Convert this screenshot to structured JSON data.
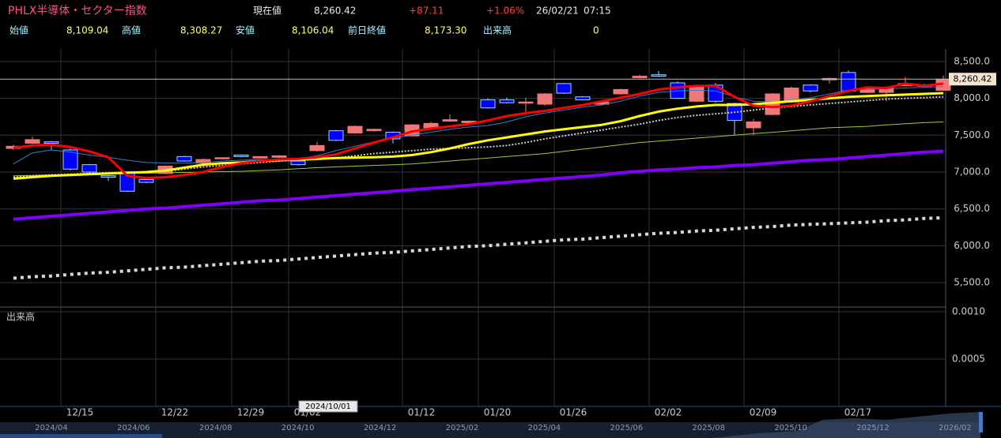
{
  "header": {
    "row1": [
      "PHLX半導体・セクター指数",
      "現在値",
      "8,260.42",
      "+87.11",
      "+1.06%",
      "26/02/21",
      "07:15"
    ],
    "row2": [
      "始値",
      "8,109.04",
      "高値",
      "8,308.27",
      "安値",
      "8,106.04",
      "前日終値",
      "8,173.30",
      "出来高",
      "0"
    ]
  },
  "chart_data": {
    "type": "candlestick",
    "categories": [
      null,
      null,
      null,
      "12/15",
      null,
      null,
      null,
      null,
      "12/22",
      null,
      null,
      null,
      "12/29",
      null,
      null,
      "01/02",
      null,
      null,
      null,
      null,
      null,
      "01/12",
      null,
      null,
      null,
      "01/20",
      null,
      null,
      null,
      "01/26",
      null,
      null,
      null,
      null,
      "02/02",
      null,
      null,
      null,
      null,
      "02/09",
      null,
      null,
      null,
      null,
      "02/17",
      null,
      null,
      null,
      null,
      null
    ],
    "open": [
      7320,
      7390,
      7410,
      7300,
      7100,
      6950,
      7000,
      6900,
      6980,
      7210,
      7120,
      7180,
      7230,
      7190,
      7200,
      7150,
      7290,
      7560,
      7530,
      7560,
      7540,
      7490,
      7600,
      7690,
      7670,
      7980,
      7980,
      7940,
      7920,
      8200,
      8020,
      7920,
      8060,
      8280,
      8320,
      8210,
      7960,
      8180,
      7930,
      7600,
      7780,
      7950,
      8180,
      8250,
      8350,
      8080,
      8080,
      8170,
      8170,
      8109.04
    ],
    "high": [
      7370,
      7480,
      7420,
      7320,
      7110,
      6960,
      7010,
      6920,
      7090,
      7220,
      7180,
      7200,
      7240,
      7215,
      7230,
      7170,
      7410,
      7570,
      7630,
      7590,
      7550,
      7650,
      7680,
      7780,
      7700,
      8000,
      8010,
      8010,
      8070,
      8210,
      8030,
      7960,
      8130,
      8320,
      8370,
      8230,
      8170,
      8210,
      7940,
      7720,
      8070,
      8160,
      8190,
      8280,
      8380,
      8150,
      8160,
      8290,
      8200,
      8308.27
    ],
    "low": [
      7300,
      7380,
      7300,
      7020,
      6980,
      6880,
      6730,
      6850,
      6970,
      7140,
      7110,
      7170,
      7200,
      7185,
      7190,
      7090,
      7280,
      7420,
      7520,
      7550,
      7390,
      7480,
      7590,
      7680,
      7650,
      7860,
      7930,
      7800,
      7900,
      8060,
      7970,
      7910,
      8050,
      8270,
      8290,
      7990,
      7950,
      7940,
      7500,
      7500,
      7770,
      7940,
      8080,
      8200,
      8080,
      8070,
      7960,
      8160,
      8150,
      8106.04
    ],
    "close": [
      7350,
      7440,
      7390,
      7040,
      7000,
      6930,
      6740,
      6860,
      7080,
      7150,
      7170,
      7195,
      7210,
      7210,
      7220,
      7100,
      7360,
      7430,
      7620,
      7580,
      7450,
      7640,
      7660,
      7710,
      7690,
      7870,
      7940,
      7950,
      8060,
      8070,
      7980,
      7950,
      8120,
      8300,
      8300,
      8000,
      8150,
      7960,
      7700,
      7680,
      8060,
      8140,
      8100,
      8270,
      8100,
      8140,
      8140,
      8200,
      8180,
      8260.42
    ],
    "up_color": "#f07878",
    "down_color": "#0000ff",
    "series": [
      {
        "color": "#d8d8d8",
        "width": 4,
        "dash": "4 5",
        "values": [
          5560,
          5580,
          5590,
          5610,
          5630,
          5640,
          5660,
          5680,
          5700,
          5710,
          5730,
          5750,
          5770,
          5790,
          5800,
          5820,
          5840,
          5860,
          5880,
          5900,
          5910,
          5930,
          5950,
          5970,
          5990,
          6000,
          6020,
          6040,
          6060,
          6080,
          6090,
          6110,
          6130,
          6150,
          6170,
          6180,
          6200,
          6210,
          6230,
          6250,
          6260,
          6280,
          6290,
          6300,
          6310,
          6320,
          6340,
          6350,
          6370,
          6380
        ]
      },
      {
        "color": "#8000ff",
        "width": 4,
        "values": [
          6360,
          6380,
          6400,
          6420,
          6440,
          6460,
          6480,
          6500,
          6510,
          6530,
          6550,
          6570,
          6590,
          6610,
          6620,
          6640,
          6660,
          6680,
          6700,
          6720,
          6740,
          6760,
          6780,
          6800,
          6820,
          6840,
          6860,
          6880,
          6900,
          6920,
          6940,
          6960,
          6990,
          7010,
          7030,
          7040,
          7060,
          7070,
          7090,
          7100,
          7120,
          7140,
          7160,
          7170,
          7190,
          7210,
          7230,
          7250,
          7270,
          7280
        ]
      },
      {
        "color": "#9acd32",
        "width": 1,
        "values": [
          6950,
          6955,
          6960,
          6965,
          6970,
          6975,
          6980,
          6985,
          6990,
          6995,
          7000,
          7005,
          7010,
          7020,
          7030,
          7045,
          7060,
          7070,
          7080,
          7090,
          7100,
          7110,
          7130,
          7150,
          7170,
          7190,
          7210,
          7230,
          7250,
          7280,
          7310,
          7340,
          7370,
          7400,
          7420,
          7440,
          7460,
          7480,
          7500,
          7520,
          7540,
          7560,
          7580,
          7600,
          7610,
          7620,
          7640,
          7655,
          7670,
          7680
        ]
      },
      {
        "color": "#3a7bd5",
        "width": 1,
        "values": [
          7110,
          7260,
          7300,
          7270,
          7230,
          7200,
          7160,
          7130,
          7120,
          7120,
          7130,
          7150,
          7160,
          7170,
          7170,
          7180,
          7220,
          7290,
          7350,
          7410,
          7460,
          7500,
          7540,
          7580,
          7610,
          7630,
          7680,
          7750,
          7800,
          7840,
          7880,
          7910,
          7960,
          8030,
          8080,
          8100,
          8110,
          8100,
          8020,
          7960,
          7950,
          7980,
          8010,
          8060,
          8110,
          8120,
          8130,
          8140,
          8150,
          8160
        ]
      },
      {
        "color": "#cccccc",
        "width": 2,
        "dash": "2 2",
        "values": [
          6930,
          6950,
          6960,
          6970,
          6980,
          6990,
          7000,
          7000,
          7010,
          7040,
          7070,
          7090,
          7110,
          7130,
          7150,
          7160,
          7170,
          7190,
          7220,
          7250,
          7270,
          7290,
          7310,
          7320,
          7330,
          7340,
          7360,
          7400,
          7450,
          7490,
          7530,
          7570,
          7610,
          7650,
          7700,
          7740,
          7770,
          7790,
          7810,
          7840,
          7870,
          7890,
          7910,
          7930,
          7950,
          7970,
          7990,
          8000,
          8010,
          8020
        ]
      },
      {
        "color": "#ffff00",
        "width": 3,
        "values": [
          6910,
          6930,
          6950,
          6960,
          6970,
          6980,
          6990,
          7000,
          7020,
          7060,
          7100,
          7120,
          7130,
          7150,
          7160,
          7170,
          7180,
          7190,
          7195,
          7200,
          7210,
          7230,
          7270,
          7320,
          7380,
          7430,
          7470,
          7510,
          7550,
          7580,
          7610,
          7640,
          7690,
          7760,
          7820,
          7860,
          7890,
          7910,
          7910,
          7920,
          7940,
          7960,
          7980,
          8000,
          8020,
          8030,
          8040,
          8050,
          8060,
          8070
        ]
      },
      {
        "color": "#ff0000",
        "width": 3,
        "values": [
          7330,
          7360,
          7370,
          7340,
          7280,
          7200,
          6950,
          6920,
          6930,
          6960,
          7000,
          7070,
          7120,
          7150,
          7170,
          7180,
          7200,
          7240,
          7320,
          7400,
          7470,
          7550,
          7590,
          7620,
          7650,
          7700,
          7760,
          7800,
          7830,
          7870,
          7910,
          7960,
          8010,
          8060,
          8120,
          8150,
          8170,
          8170,
          8020,
          7900,
          7880,
          7900,
          7960,
          8030,
          8100,
          8150,
          8140,
          8200,
          8170,
          8200
        ]
      }
    ],
    "ylim": [
      5180,
      8670
    ],
    "yticks": [
      {
        "value": 5500,
        "label": "5,500.0"
      },
      {
        "value": 6000,
        "label": "6,000.0"
      },
      {
        "value": 6500,
        "label": "6,500.0"
      },
      {
        "value": 7000,
        "label": "7,000.0"
      },
      {
        "value": 7500,
        "label": "7,500.0"
      },
      {
        "value": 8000,
        "label": "8,000.0"
      },
      {
        "value": 8500,
        "label": "8,500.0"
      }
    ],
    "grid": true,
    "last_price": {
      "value": 8260.42,
      "label": "8,260.42"
    },
    "volume": {
      "title": "出来高",
      "ylim": [
        0,
        0.001
      ],
      "yticks": [
        {
          "value": 0.0005,
          "label": "0.0005"
        },
        {
          "value": 0.001,
          "label": "0.0010"
        }
      ]
    }
  },
  "navigator": {
    "labels": [
      "2024/04",
      "2024/06",
      "2024/08",
      "2024/10",
      "2024/12",
      "2025/02",
      "2025/04",
      "2025/06",
      "2025/08",
      "2025/10",
      "2025/12",
      "2026/02"
    ],
    "tooltip": "2024/10/01"
  }
}
